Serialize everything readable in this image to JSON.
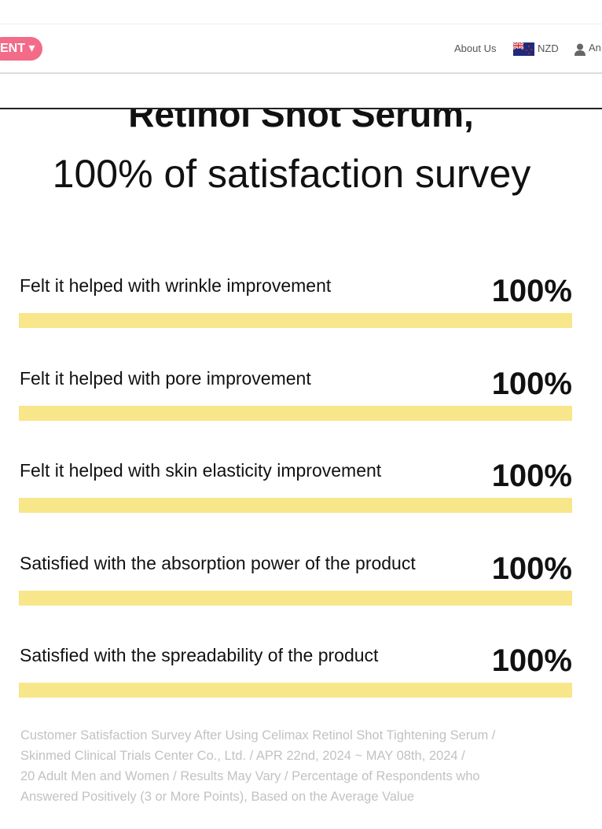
{
  "nav": {
    "event": "ENT",
    "links": [
      "About Us",
      "NZD",
      "An"
    ]
  },
  "heading": [
    "Retinol Shot Serum,",
    "100% of satisfaction survey"
  ],
  "survey": {
    "categories": [
      "Felt it helped with wrinkle improvement",
      "Felt it helped with pore improvement",
      "Felt it helped with skin elasticity improvement",
      "Satisfied with the absorption power of the product",
      "Satisfied with the spreadability of the product"
    ],
    "values": [
      100,
      100,
      100,
      100,
      100
    ],
    "value_labels": [
      "100%",
      "100%",
      "100%",
      "100%",
      "100%"
    ],
    "xlim": [
      0,
      100
    ],
    "color": "#f8e68a"
  },
  "footnote": [
    "Customer Satisfaction Survey After Using Celimax Retinol Shot Tightening Serum /",
    "Skinmed Clinical Trials Center Co., Ltd. / APR 22nd, 2024 ~ MAY 08th, 2024 /",
    "20 Adult Men and Women / Results May Vary / Percentage of Respondents who",
    "Answered Positively (3 or More Points), Based on the Average Value"
  ]
}
